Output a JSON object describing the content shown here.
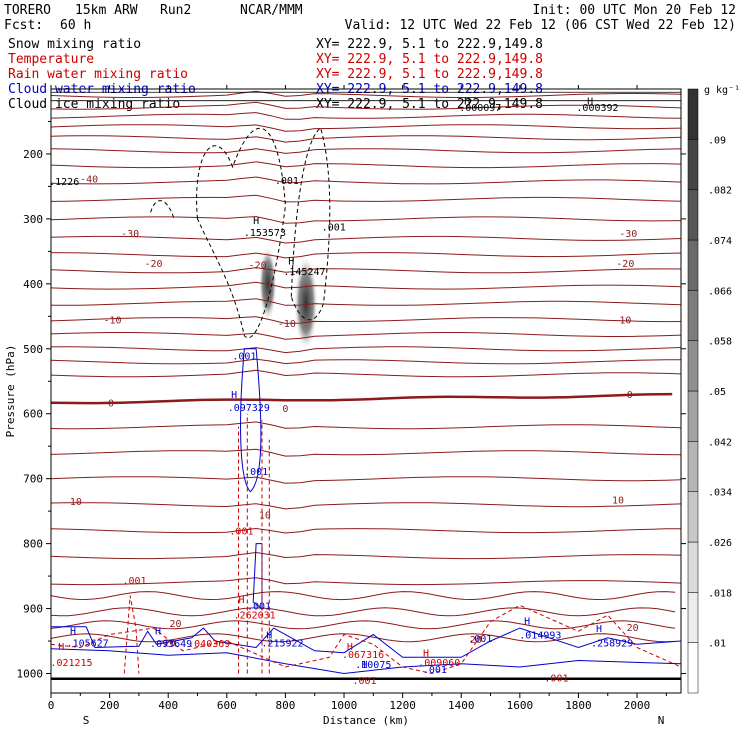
{
  "header": {
    "model": "TORERO",
    "run_desc": "15km ARW",
    "run": "Run2",
    "org": "NCAR/MMM",
    "init": "Init: 00 UTC Mon 20 Feb 12",
    "fcst_label": "Fcst:",
    "fcst_value": "60 h",
    "valid": "Valid: 12 UTC Wed 22 Feb 12 (06 CST Wed 22 Feb 12)"
  },
  "fields": [
    {
      "name": "Snow mixing ratio",
      "xy": "XY= 222.9,  5.1 to 222.9,149.8",
      "color": "#000000"
    },
    {
      "name": "Temperature",
      "xy": "XY= 222.9,  5.1 to 222.9,149.8",
      "color": "#cc0000"
    },
    {
      "name": "Rain water mixing ratio",
      "xy": "XY= 222.9,  5.1 to 222.9,149.8",
      "color": "#cc0000"
    },
    {
      "name": "Cloud water mixing ratio",
      "xy": "XY= 222.9,  5.1 to 222.9,149.8",
      "color": "#0000cc"
    },
    {
      "name": "Cloud ice mixing ratio",
      "xy": "XY= 222.9,  5.1 to 222.9,149.8",
      "color": "#000000"
    }
  ],
  "chart_data": {
    "type": "cross-section contour",
    "xlabel": "Distance (km)",
    "ylabel": "Pressure (hPa)",
    "xlim": [
      0,
      2150
    ],
    "ylim": [
      1030,
      100
    ],
    "x_ticks": [
      "0",
      "200",
      "400",
      "600",
      "800",
      "1000",
      "1200",
      "1400",
      "1600",
      "1800",
      "2000"
    ],
    "y_ticks": [
      "200",
      "300",
      "400",
      "500",
      "600",
      "700",
      "800",
      "900",
      "1000"
    ],
    "x_end_labels": {
      "left": "S",
      "right": "N"
    },
    "colorbar": {
      "unit": "g kg⁻¹",
      "levels": [
        ".01",
        ".018",
        ".026",
        ".034",
        ".042",
        ".05",
        ".058",
        ".066",
        ".074",
        ".082",
        ".09"
      ]
    },
    "temperature_contour_labels": [
      {
        "text": "-40",
        "x": 130,
        "p": 238
      },
      {
        "text": "-30",
        "x": 270,
        "p": 322
      },
      {
        "text": "-30",
        "x": 1970,
        "p": 322
      },
      {
        "text": "-20",
        "x": 350,
        "p": 368
      },
      {
        "text": "-20",
        "x": 1960,
        "p": 368
      },
      {
        "text": "-20",
        "x": 705,
        "p": 370
      },
      {
        "text": "-10",
        "x": 210,
        "p": 455
      },
      {
        "text": "-10",
        "x": 1950,
        "p": 455
      },
      {
        "text": "-10",
        "x": 805,
        "p": 460
      },
      {
        "text": "0",
        "x": 205,
        "p": 583
      },
      {
        "text": "0",
        "x": 800,
        "p": 591
      },
      {
        "text": "0",
        "x": 1975,
        "p": 570
      },
      {
        "text": "10",
        "x": 85,
        "p": 734
      },
      {
        "text": "10",
        "x": 730,
        "p": 755
      },
      {
        "text": "10",
        "x": 1935,
        "p": 732
      },
      {
        "text": "20",
        "x": 425,
        "p": 922
      },
      {
        "text": "20",
        "x": 1450,
        "p": 947
      },
      {
        "text": "20",
        "x": 1985,
        "p": 928
      },
      {
        "text": "20",
        "x": 405,
        "p": 952
      }
    ],
    "snow_labels": [
      {
        "text": ".001",
        "x": 805,
        "p": 240
      },
      {
        "text": ".001",
        "x": 965,
        "p": 312
      },
      {
        "text": "H",
        "x": 700,
        "p": 302
      },
      {
        "text": ".153573",
        "x": 730,
        "p": 320
      },
      {
        "text": "H",
        "x": 820,
        "p": 364
      },
      {
        "text": ".145247",
        "x": 865,
        "p": 380
      },
      {
        "text": ".1226",
        "x": 45,
        "p": 242
      }
    ],
    "ice_labels": [
      {
        "text": ".000392",
        "x": 1865,
        "p": 128
      },
      {
        "text": ".000097",
        "x": 1465,
        "p": 128
      },
      {
        "text": "H",
        "x": 1420,
        "p": 118
      },
      {
        "text": "H",
        "x": 1840,
        "p": 118
      }
    ],
    "rain_labels": [
      {
        "text": ".001",
        "x": 285,
        "p": 856
      },
      {
        "text": ".001",
        "x": 650,
        "p": 780
      },
      {
        "text": "H",
        "x": 650,
        "p": 885
      },
      {
        "text": ".262031",
        "x": 695,
        "p": 909
      },
      {
        "text": "H",
        "x": 35,
        "p": 958
      },
      {
        "text": ".021215",
        "x": 70,
        "p": 982
      },
      {
        "text": ".040369",
        "x": 540,
        "p": 953
      },
      {
        "text": "H",
        "x": 1020,
        "p": 958
      },
      {
        "text": ".067316",
        "x": 1065,
        "p": 970
      },
      {
        "text": "H",
        "x": 1280,
        "p": 968
      },
      {
        "text": ".009060",
        "x": 1325,
        "p": 982
      },
      {
        "text": ".001",
        "x": 1070,
        "p": 1010
      },
      {
        "text": ".001",
        "x": 1725,
        "p": 1006
      }
    ],
    "cloud_water_labels": [
      {
        "text": ".001",
        "x": 660,
        "p": 510
      },
      {
        "text": "H",
        "x": 625,
        "p": 570
      },
      {
        "text": ".097329",
        "x": 675,
        "p": 590
      },
      {
        "text": ".001",
        "x": 700,
        "p": 688
      },
      {
        "text": ".001",
        "x": 710,
        "p": 895
      },
      {
        "text": "H",
        "x": 75,
        "p": 934
      },
      {
        "text": ".105627",
        "x": 125,
        "p": 952
      },
      {
        "text": "H",
        "x": 365,
        "p": 934
      },
      {
        "text": ".093649",
        "x": 410,
        "p": 953
      },
      {
        "text": "H",
        "x": 745,
        "p": 940
      },
      {
        "text": ".215922",
        "x": 790,
        "p": 952
      },
      {
        "text": "H",
        "x": 1070,
        "p": 985
      },
      {
        "text": ".10075",
        "x": 1100,
        "p": 985
      },
      {
        "text": ".001",
        "x": 1465,
        "p": 945
      },
      {
        "text": "H",
        "x": 1625,
        "p": 918
      },
      {
        "text": ".014993",
        "x": 1670,
        "p": 940
      },
      {
        "text": "H",
        "x": 1870,
        "p": 930
      },
      {
        "text": ".258929",
        "x": 1915,
        "p": 952
      },
      {
        "text": ".001",
        "x": 1310,
        "p": 993
      }
    ]
  }
}
